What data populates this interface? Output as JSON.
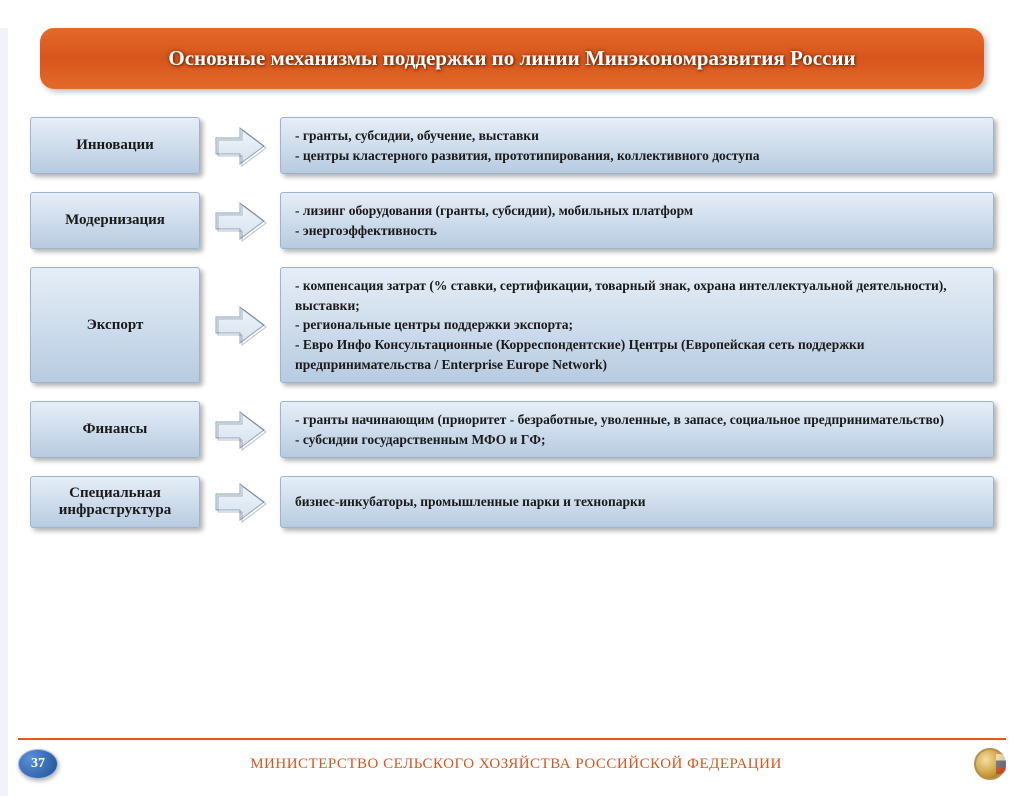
{
  "colors": {
    "banner_bg": "#e05a1b",
    "box_grad_top": "#e6eef7",
    "box_grad_bot": "#b7cbe0",
    "box_border": "#9fb4cc",
    "footer_text": "#d8551c",
    "arrow_fill": "#d8e3ef",
    "arrow_stroke": "#8aa3c0"
  },
  "title": "Основные механизмы поддержки по линии Минэкономразвития России",
  "rows": [
    {
      "category": "Инновации",
      "lines": [
        "- гранты, субсидии, обучение, выставки",
        "- центры кластерного развития, прототипирования, коллективного доступа"
      ]
    },
    {
      "category": "Модернизация",
      "lines": [
        "- лизинг оборудования (гранты, субсидии), мобильных платформ",
        "- энергоэффективность"
      ]
    },
    {
      "category": "Экспорт",
      "lines": [
        "- компенсация затрат (% ставки, сертификации, товарный знак, охрана интеллектуальной деятельности),     выставки;",
        "- региональные центры поддержки экспорта;",
        "- Евро Инфо Консультационные (Корреспондентские) Центры (Европейская сеть поддержки предпринимательства / Enterprise Europe Network)"
      ]
    },
    {
      "category": "Финансы",
      "lines": [
        "- гранты начинающим (приоритет - безработные, уволенные, в запасе, социальное предпринимательство)",
        "- субсидии государственным МФО и ГФ;"
      ]
    },
    {
      "category": "Специальная инфраструктура",
      "lines": [
        "бизнес-инкубаторы, промышленные парки и технопарки"
      ]
    }
  ],
  "footer": {
    "page": "37",
    "text": "МИНИСТЕРСТВО СЕЛЬСКОГО ХОЗЯЙСТВА РОССИЙСКОЙ ФЕДЕРАЦИИ"
  }
}
